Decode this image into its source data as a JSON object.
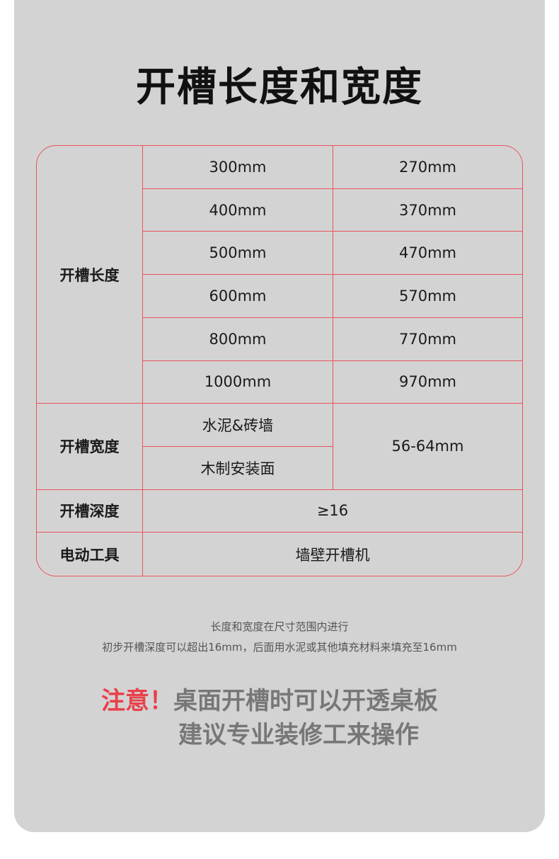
{
  "title": "开槽长度和宽度",
  "table": {
    "length_label": "开槽长度",
    "lengths": [
      {
        "a": "300mm",
        "b": "270mm"
      },
      {
        "a": "400mm",
        "b": "370mm"
      },
      {
        "a": "500mm",
        "b": "470mm"
      },
      {
        "a": "600mm",
        "b": "570mm"
      },
      {
        "a": "800mm",
        "b": "770mm"
      },
      {
        "a": "1000mm",
        "b": "970mm"
      }
    ],
    "width_label": "开槽宽度",
    "width_materials": [
      "水泥&砖墙",
      "木制安装面"
    ],
    "width_value": "56-64mm",
    "depth_label": "开槽深度",
    "depth_value": "≥16",
    "tool_label": "电动工具",
    "tool_value": "墙壁开槽机"
  },
  "notes": [
    "长度和宽度在尺寸范围内进行",
    "初步开槽深度可以超出16mm，后面用水泥或其他填充材料来填充至16mm"
  ],
  "warning": {
    "prefix": "注意！",
    "line1": "桌面开槽时可以开透桌板",
    "line2": "建议专业装修工来操作"
  },
  "colors": {
    "border": "#e8545a",
    "warning_red": "#e8414a",
    "background": "#d4d3d4"
  }
}
